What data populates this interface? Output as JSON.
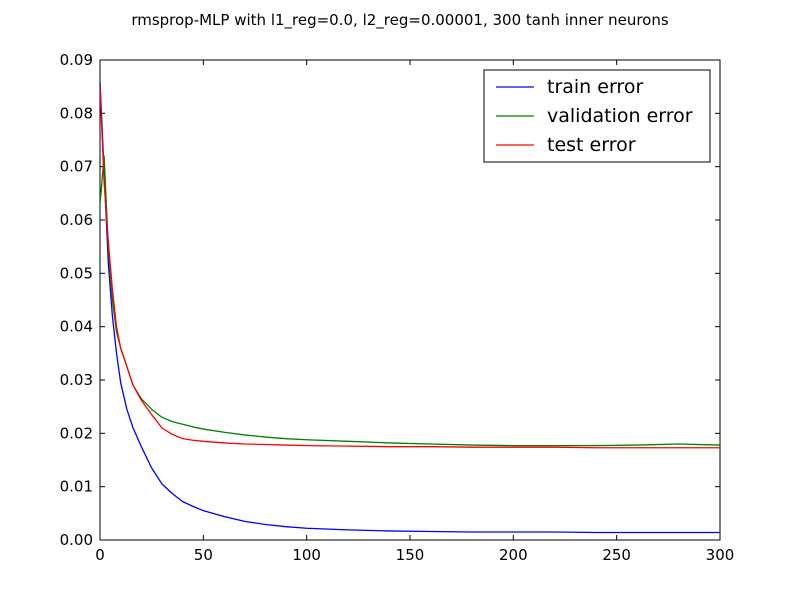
{
  "chart_data": {
    "type": "line",
    "title": "rmsprop-MLP with l1_reg=0.0, l2_reg=0.00001, 300 tanh inner neurons",
    "xlabel": "",
    "ylabel": "",
    "xlim": [
      0,
      300
    ],
    "ylim": [
      0.0,
      0.09
    ],
    "x_ticks": [
      0,
      50,
      100,
      150,
      200,
      250,
      300
    ],
    "y_ticks": [
      0.0,
      0.01,
      0.02,
      0.03,
      0.04,
      0.05,
      0.06,
      0.07,
      0.08,
      0.09
    ],
    "x_tick_labels": [
      "0",
      "50",
      "100",
      "150",
      "200",
      "250",
      "300"
    ],
    "y_tick_labels": [
      "0.00",
      "0.01",
      "0.02",
      "0.03",
      "0.04",
      "0.05",
      "0.06",
      "0.07",
      "0.08",
      "0.09"
    ],
    "grid": false,
    "legend": {
      "position": "top-right"
    },
    "series": [
      {
        "name": "train error",
        "color": "#0000ff",
        "x": [
          0,
          2,
          4,
          6,
          8,
          10,
          13,
          16,
          20,
          25,
          30,
          35,
          40,
          45,
          50,
          60,
          70,
          80,
          90,
          100,
          120,
          140,
          160,
          180,
          200,
          220,
          240,
          260,
          280,
          300
        ],
        "y": [
          0.086,
          0.069,
          0.052,
          0.042,
          0.035,
          0.0295,
          0.0245,
          0.021,
          0.0175,
          0.0135,
          0.0105,
          0.0087,
          0.0072,
          0.0063,
          0.0055,
          0.0044,
          0.0035,
          0.0029,
          0.0025,
          0.0022,
          0.0019,
          0.0017,
          0.0016,
          0.0015,
          0.0015,
          0.0015,
          0.0014,
          0.0014,
          0.0014,
          0.0014
        ]
      },
      {
        "name": "validation error",
        "color": "#008000",
        "x": [
          0,
          2,
          4,
          6,
          8,
          10,
          13,
          16,
          20,
          25,
          30,
          35,
          40,
          45,
          50,
          60,
          70,
          80,
          90,
          100,
          120,
          140,
          160,
          180,
          200,
          220,
          240,
          260,
          280,
          300
        ],
        "y": [
          0.063,
          0.072,
          0.055,
          0.045,
          0.039,
          0.036,
          0.0325,
          0.029,
          0.0265,
          0.0245,
          0.023,
          0.0222,
          0.0217,
          0.0212,
          0.0208,
          0.0202,
          0.0197,
          0.0193,
          0.019,
          0.0188,
          0.0185,
          0.0182,
          0.018,
          0.0178,
          0.0177,
          0.0177,
          0.0177,
          0.0178,
          0.018,
          0.0178
        ]
      },
      {
        "name": "test error",
        "color": "#ff0000",
        "x": [
          0,
          2,
          4,
          6,
          8,
          10,
          13,
          16,
          20,
          25,
          30,
          35,
          40,
          45,
          50,
          60,
          70,
          80,
          90,
          100,
          120,
          140,
          160,
          180,
          200,
          220,
          240,
          260,
          280,
          300
        ],
        "y": [
          0.085,
          0.067,
          0.056,
          0.047,
          0.04,
          0.036,
          0.0325,
          0.029,
          0.0262,
          0.0235,
          0.021,
          0.0198,
          0.019,
          0.0187,
          0.0185,
          0.0182,
          0.018,
          0.0179,
          0.0178,
          0.0177,
          0.0176,
          0.0175,
          0.0175,
          0.0174,
          0.0174,
          0.0174,
          0.0173,
          0.0173,
          0.0173,
          0.0173
        ]
      }
    ]
  }
}
